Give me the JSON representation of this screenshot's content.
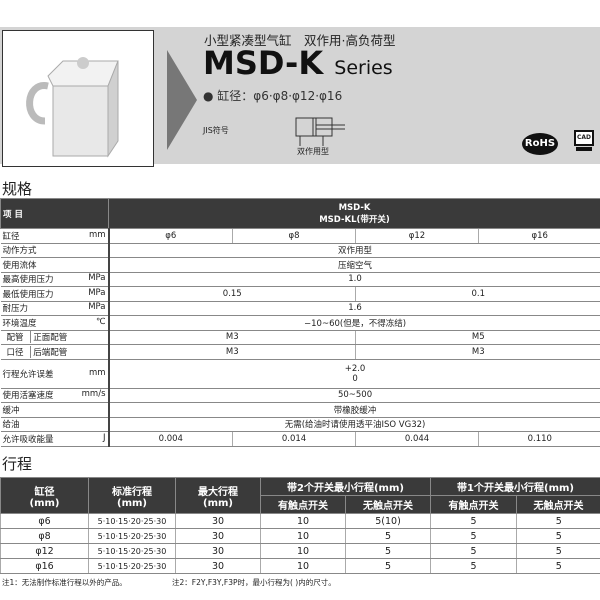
{
  "header": {
    "subtitle": "小型紧凑型气缸　双作用·高负荷型",
    "model": "MSD-K",
    "series": "Series",
    "bore": "● 缸径：φ6·φ8·φ12·φ16",
    "jis_label": "JIS符号",
    "symbol_label": "双作用型",
    "rohs": "RoHS",
    "cad": "CAD"
  },
  "spec": {
    "title": "规格",
    "item_header": "项 目",
    "model_header_1": "MSD-K",
    "model_header_2": "MSD-KL(带开关)",
    "rows": [
      {
        "label": "缸径",
        "unit": "mm",
        "values": [
          "φ6",
          "φ8",
          "φ12",
          "φ16"
        ]
      },
      {
        "label": "动作方式",
        "unit": "",
        "values": [
          "双作用型"
        ]
      },
      {
        "label": "使用流体",
        "unit": "",
        "values": [
          "压缩空气"
        ]
      },
      {
        "label": "最高使用压力",
        "unit": "MPa",
        "values": [
          "1.0"
        ]
      },
      {
        "label": "最低使用压力",
        "unit": "MPa",
        "values": [
          "0.15",
          "0.1"
        ]
      },
      {
        "label": "耐压力",
        "unit": "MPa",
        "values": [
          "1.6"
        ]
      },
      {
        "label": "环境温度",
        "unit": "℃",
        "values": [
          "−10~60(但是，不得冻结)"
        ]
      }
    ],
    "port_label_1": "配管",
    "port_label_2": "口径",
    "port_front": "正面配管",
    "port_rear": "后端配管",
    "port_front_values": [
      "M3",
      "M5"
    ],
    "port_rear_values": [
      "M3",
      "M3"
    ],
    "tolerance": {
      "label": "行程允许误差",
      "unit": "mm",
      "upper": "+2.0",
      "lower": "0"
    },
    "rows2": [
      {
        "label": "使用活塞速度",
        "unit": "mm/s",
        "values": [
          "50~500"
        ]
      },
      {
        "label": "缓冲",
        "unit": "",
        "values": [
          "带橡胶缓冲"
        ]
      },
      {
        "label": "给油",
        "unit": "",
        "values": [
          "无需(给油时请使用透平油ISO VG32)"
        ]
      },
      {
        "label": "允许吸收能量",
        "unit": "J",
        "values": [
          "0.004",
          "0.014",
          "0.044",
          "0.110"
        ]
      }
    ]
  },
  "stroke": {
    "title": "行程",
    "headers": {
      "bore": "缸径",
      "bore_unit": "(mm)",
      "std": "标准行程",
      "std_unit": "(mm)",
      "max": "最大行程",
      "max_unit": "(mm)",
      "two": "带2个开关最小行程(mm)",
      "one": "带1个开关最小行程(mm)",
      "contact": "有触点开关",
      "noncontact": "无触点开关"
    },
    "rows": [
      [
        "φ6",
        "5·10·15·20·25·30",
        "30",
        "10",
        "5(10)",
        "5",
        "5"
      ],
      [
        "φ8",
        "5·10·15·20·25·30",
        "30",
        "10",
        "5",
        "5",
        "5"
      ],
      [
        "φ12",
        "5·10·15·20·25·30",
        "30",
        "10",
        "5",
        "5",
        "5"
      ],
      [
        "φ16",
        "5·10·15·20·25·30",
        "30",
        "10",
        "5",
        "5",
        "5"
      ]
    ]
  },
  "notes": {
    "note1": "注1：无法制作标准行程以外的产品。",
    "note2": "注2：F2Y,F3Y,F3P时，最小行程为(  )内的尺寸。"
  }
}
